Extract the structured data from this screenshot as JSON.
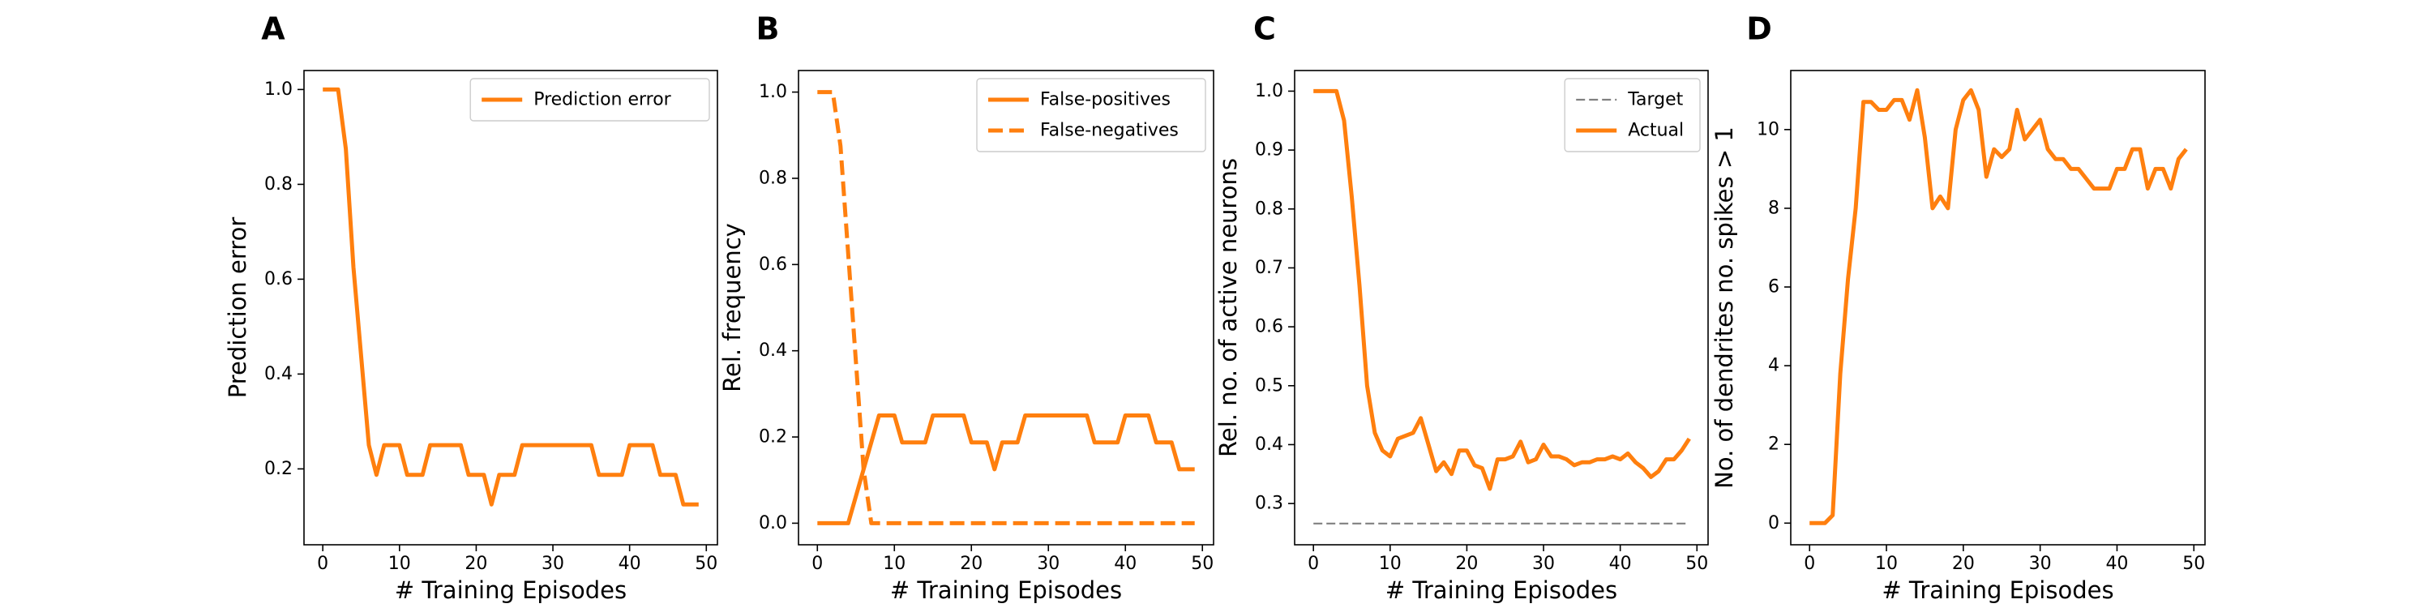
{
  "chart_data": [
    {
      "panel": "A",
      "type": "line",
      "xlabel": "# Training Episodes",
      "ylabel": "Prediction error",
      "xlim": [
        -2.45,
        51.45
      ],
      "ylim": [
        0.04,
        1.04
      ],
      "xticks": [
        0,
        10,
        20,
        30,
        40,
        50
      ],
      "xtick_labels": [
        "0",
        "10",
        "20",
        "30",
        "40",
        "50"
      ],
      "yticks": [
        0.2,
        0.4,
        0.6,
        0.8,
        1.0
      ],
      "ytick_labels": [
        "0.2",
        "0.4",
        "0.6",
        "0.8",
        "1.0"
      ],
      "legend_position": "top-right",
      "series": [
        {
          "name": "Prediction error",
          "color": "#ff7f0e",
          "style": "solid",
          "x": [
            0,
            1,
            2,
            3,
            4,
            5,
            6,
            7,
            8,
            9,
            10,
            11,
            12,
            13,
            14,
            15,
            16,
            17,
            18,
            19,
            20,
            21,
            22,
            23,
            24,
            25,
            26,
            27,
            28,
            29,
            30,
            31,
            32,
            33,
            34,
            35,
            36,
            37,
            38,
            39,
            40,
            41,
            42,
            43,
            44,
            45,
            46,
            47,
            48,
            49
          ],
          "y": [
            1.0,
            1.0,
            1.0,
            0.875,
            0.625,
            0.4375,
            0.25,
            0.1875,
            0.25,
            0.25,
            0.25,
            0.1875,
            0.1875,
            0.1875,
            0.25,
            0.25,
            0.25,
            0.25,
            0.25,
            0.1875,
            0.1875,
            0.1875,
            0.125,
            0.1875,
            0.1875,
            0.1875,
            0.25,
            0.25,
            0.25,
            0.25,
            0.25,
            0.25,
            0.25,
            0.25,
            0.25,
            0.25,
            0.1875,
            0.1875,
            0.1875,
            0.1875,
            0.25,
            0.25,
            0.25,
            0.25,
            0.1875,
            0.1875,
            0.1875,
            0.125,
            0.125,
            0.125
          ]
        }
      ]
    },
    {
      "panel": "B",
      "type": "line",
      "xlabel": "# Training Episodes",
      "ylabel": "Rel. frequency",
      "xlim": [
        -2.45,
        51.45
      ],
      "ylim": [
        -0.05,
        1.05
      ],
      "xticks": [
        0,
        10,
        20,
        30,
        40,
        50
      ],
      "xtick_labels": [
        "0",
        "10",
        "20",
        "30",
        "40",
        "50"
      ],
      "yticks": [
        0.0,
        0.2,
        0.4,
        0.6,
        0.8,
        1.0
      ],
      "ytick_labels": [
        "0.0",
        "0.2",
        "0.4",
        "0.6",
        "0.8",
        "1.0"
      ],
      "legend_position": "top-right",
      "series": [
        {
          "name": "False-positives",
          "color": "#ff7f0e",
          "style": "solid",
          "x": [
            0,
            1,
            2,
            3,
            4,
            5,
            6,
            7,
            8,
            9,
            10,
            11,
            12,
            13,
            14,
            15,
            16,
            17,
            18,
            19,
            20,
            21,
            22,
            23,
            24,
            25,
            26,
            27,
            28,
            29,
            30,
            31,
            32,
            33,
            34,
            35,
            36,
            37,
            38,
            39,
            40,
            41,
            42,
            43,
            44,
            45,
            46,
            47,
            48,
            49
          ],
          "y": [
            0,
            0,
            0,
            0,
            0,
            0.0625,
            0.125,
            0.1875,
            0.25,
            0.25,
            0.25,
            0.1875,
            0.1875,
            0.1875,
            0.1875,
            0.25,
            0.25,
            0.25,
            0.25,
            0.25,
            0.1875,
            0.1875,
            0.1875,
            0.125,
            0.1875,
            0.1875,
            0.1875,
            0.25,
            0.25,
            0.25,
            0.25,
            0.25,
            0.25,
            0.25,
            0.25,
            0.25,
            0.1875,
            0.1875,
            0.1875,
            0.1875,
            0.25,
            0.25,
            0.25,
            0.25,
            0.1875,
            0.1875,
            0.1875,
            0.125,
            0.125,
            0.125
          ]
        },
        {
          "name": "False-negatives",
          "color": "#ff7f0e",
          "style": "dashed",
          "x": [
            0,
            1,
            2,
            3,
            4,
            5,
            6,
            7,
            8,
            9,
            10,
            11,
            12,
            13,
            14,
            15,
            16,
            17,
            18,
            19,
            20,
            21,
            22,
            23,
            24,
            25,
            26,
            27,
            28,
            29,
            30,
            31,
            32,
            33,
            34,
            35,
            36,
            37,
            38,
            39,
            40,
            41,
            42,
            43,
            44,
            45,
            46,
            47,
            48,
            49
          ],
          "y": [
            1.0,
            1.0,
            1.0,
            0.875,
            0.625,
            0.375,
            0.125,
            0,
            0,
            0,
            0,
            0,
            0,
            0,
            0,
            0,
            0,
            0,
            0,
            0,
            0,
            0,
            0,
            0,
            0,
            0,
            0,
            0,
            0,
            0,
            0,
            0,
            0,
            0,
            0,
            0,
            0,
            0,
            0,
            0,
            0,
            0,
            0,
            0,
            0,
            0,
            0,
            0,
            0,
            0
          ]
        }
      ]
    },
    {
      "panel": "C",
      "type": "line",
      "xlabel": "# Training Episodes",
      "ylabel": "Rel. no. of active neurons",
      "xlim": [
        -2.45,
        51.45
      ],
      "ylim": [
        0.23,
        1.035
      ],
      "xticks": [
        0,
        10,
        20,
        30,
        40,
        50
      ],
      "xtick_labels": [
        "0",
        "10",
        "20",
        "30",
        "40",
        "50"
      ],
      "yticks": [
        0.3,
        0.4,
        0.5,
        0.6,
        0.7,
        0.8,
        0.9,
        1.0
      ],
      "ytick_labels": [
        "0.3",
        "0.4",
        "0.5",
        "0.6",
        "0.7",
        "0.8",
        "0.9",
        "1.0"
      ],
      "legend_position": "top-right",
      "series": [
        {
          "name": "Target",
          "color": "#808080",
          "style": "dashed",
          "x": [
            0,
            49
          ],
          "y": [
            0.266,
            0.266
          ]
        },
        {
          "name": "Actual",
          "color": "#ff7f0e",
          "style": "solid",
          "x": [
            0,
            1,
            2,
            3,
            4,
            5,
            6,
            7,
            8,
            9,
            10,
            11,
            12,
            13,
            14,
            15,
            16,
            17,
            18,
            19,
            20,
            21,
            22,
            23,
            24,
            25,
            26,
            27,
            28,
            29,
            30,
            31,
            32,
            33,
            34,
            35,
            36,
            37,
            38,
            39,
            40,
            41,
            42,
            43,
            44,
            45,
            46,
            47,
            48,
            49
          ],
          "y": [
            1.0,
            1.0,
            1.0,
            1.0,
            0.95,
            0.82,
            0.67,
            0.5,
            0.42,
            0.39,
            0.38,
            0.41,
            0.415,
            0.42,
            0.445,
            0.4,
            0.355,
            0.37,
            0.35,
            0.39,
            0.39,
            0.365,
            0.36,
            0.325,
            0.375,
            0.375,
            0.38,
            0.405,
            0.37,
            0.375,
            0.4,
            0.38,
            0.38,
            0.375,
            0.365,
            0.37,
            0.37,
            0.375,
            0.375,
            0.38,
            0.375,
            0.385,
            0.37,
            0.36,
            0.345,
            0.355,
            0.375,
            0.375,
            0.39,
            0.41
          ]
        }
      ]
    },
    {
      "panel": "D",
      "type": "line",
      "xlabel": "# Training Episodes",
      "ylabel": "No. of dendrites no. spikes > 1",
      "xlim": [
        -2.45,
        51.45
      ],
      "ylim": [
        -0.55,
        11.5
      ],
      "xticks": [
        0,
        10,
        20,
        30,
        40,
        50
      ],
      "xtick_labels": [
        "0",
        "10",
        "20",
        "30",
        "40",
        "50"
      ],
      "yticks": [
        0,
        2,
        4,
        6,
        8,
        10
      ],
      "ytick_labels": [
        "0",
        "2",
        "4",
        "6",
        "8",
        "10"
      ],
      "legend_position": "none",
      "series": [
        {
          "name": "",
          "color": "#ff7f0e",
          "style": "solid",
          "x": [
            0,
            1,
            2,
            3,
            4,
            5,
            6,
            7,
            8,
            9,
            10,
            11,
            12,
            13,
            14,
            15,
            16,
            17,
            18,
            19,
            20,
            21,
            22,
            23,
            24,
            25,
            26,
            27,
            28,
            29,
            30,
            31,
            32,
            33,
            34,
            35,
            36,
            37,
            38,
            39,
            40,
            41,
            42,
            43,
            44,
            45,
            46,
            47,
            48,
            49
          ],
          "y": [
            0,
            0,
            0,
            0.2,
            3.8,
            6.2,
            8,
            10.7,
            10.7,
            10.5,
            10.5,
            10.75,
            10.75,
            10.25,
            11,
            9.8,
            8,
            8.3,
            8,
            10,
            10.75,
            11,
            10.5,
            8.8,
            9.5,
            9.3,
            9.5,
            10.5,
            9.75,
            10,
            10.25,
            9.5,
            9.25,
            9.25,
            9,
            9,
            8.75,
            8.5,
            8.5,
            8.5,
            9,
            9,
            9.5,
            9.5,
            8.5,
            9,
            9,
            8.5,
            9.25,
            9.5
          ]
        }
      ]
    }
  ]
}
